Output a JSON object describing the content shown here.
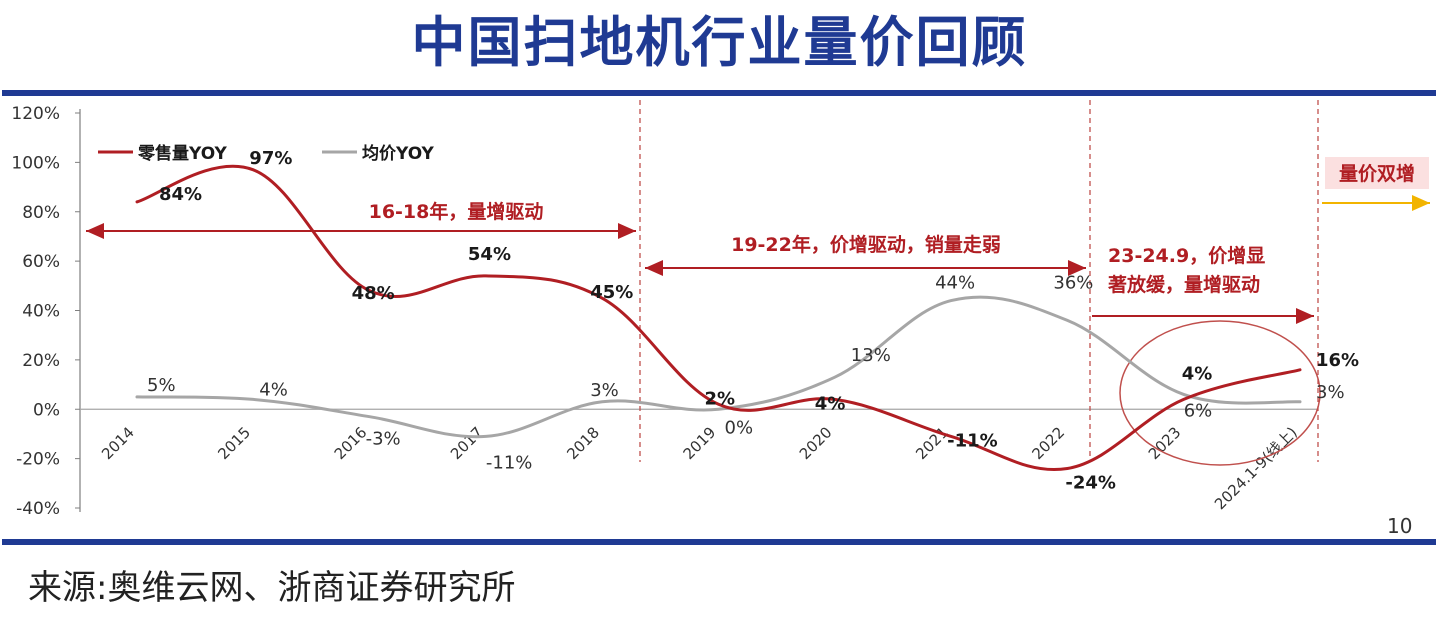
{
  "title": "中国扫地机行业量价回顾",
  "source": "来源:奥维云网、浙商证券研究所",
  "page_number": "10",
  "chart_data": {
    "type": "line",
    "categories": [
      "2014",
      "2015",
      "2016",
      "2017",
      "2018",
      "2019",
      "2020",
      "2021",
      "2022",
      "2023",
      "2024.1-9(线上)"
    ],
    "y_ticks": [
      "120%",
      "100%",
      "80%",
      "60%",
      "40%",
      "20%",
      "0%",
      "-20%",
      "-40%"
    ],
    "ylim": [
      -40,
      120
    ],
    "grid": false,
    "legend_position": "top-left",
    "series": [
      {
        "name": "零售量YOY",
        "color": "#b01e23",
        "values": [
          84,
          97,
          48,
          54,
          45,
          2,
          4,
          -11,
          -24,
          4,
          16
        ],
        "labels": [
          "84%",
          "97%",
          "48%",
          "54%",
          "45%",
          "2%",
          "4%",
          "-11%",
          "-24%",
          "4%",
          "16%"
        ]
      },
      {
        "name": "均价YOY",
        "color": "#a6a6a6",
        "values": [
          5,
          4,
          -3,
          -11,
          3,
          0,
          13,
          44,
          36,
          6,
          3
        ],
        "labels": [
          "5%",
          "4%",
          "-3%",
          "-11%",
          "3%",
          "0%",
          "13%",
          "44%",
          "36%",
          "6%",
          "3%"
        ]
      }
    ],
    "annotations": {
      "phase1": "16-18年，量增驱动",
      "phase2": "19-22年，价增驱动，销量走弱",
      "phase3_line1": "23-24.9，价增显",
      "phase3_line2": "著放缓，量增驱动",
      "phase4": "量价双增"
    },
    "colors": {
      "title": "#1f3a93",
      "phase_text": "#b01e23",
      "phase_arrow": "#b01e23",
      "future_arrow": "#f2b400",
      "tag_background": "#fbe0e0"
    }
  }
}
